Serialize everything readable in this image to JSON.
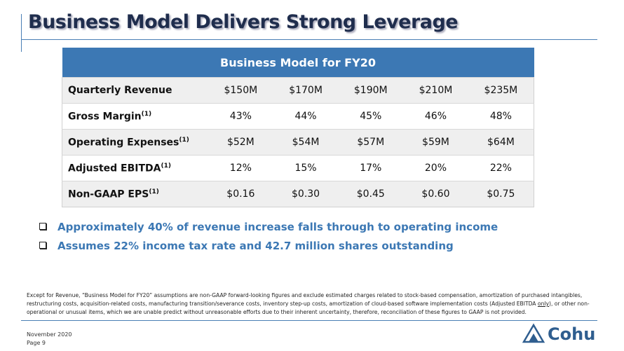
{
  "header": {
    "title": "Business Model Delivers Strong Leverage"
  },
  "table": {
    "title": "Business Model for FY20",
    "rows": [
      {
        "label": "Quarterly Revenue",
        "note": null,
        "values": [
          "$150M",
          "$170M",
          "$190M",
          "$210M",
          "$235M"
        ]
      },
      {
        "label": "Gross Margin",
        "note": "(1)",
        "values": [
          "43%",
          "44%",
          "45%",
          "46%",
          "48%"
        ]
      },
      {
        "label": "Operating Expenses",
        "note": "(1)",
        "values": [
          "$52M",
          "$54M",
          "$57M",
          "$59M",
          "$64M"
        ]
      },
      {
        "label": "Adjusted EBITDA",
        "note": "(1)",
        "values": [
          "12%",
          "15%",
          "17%",
          "20%",
          "22%"
        ]
      },
      {
        "label": "Non-GAAP EPS",
        "note": "(1)",
        "values": [
          "$0.16",
          "$0.30",
          "$0.45",
          "$0.60",
          "$0.75"
        ]
      }
    ]
  },
  "bullets": [
    "Approximately 40% of revenue increase falls through to operating income",
    "Assumes 22% income tax rate and 42.7 million shares outstanding"
  ],
  "footnote": {
    "before": "Except for Revenue, “Business Model for FY20” assumptions are non-GAAP forward-looking figures and exclude estimated charges related to stock-based compensation, amortization of purchased intangibles, restructuring costs, acquisition-related costs, manufacturing transition/severance costs, inventory step-up costs, amortization of cloud-based software implementation costs (Adjusted EBITDA ",
    "emphasis": "only",
    "after": "), or other non-operational or unusual items, which we are unable predict without unreasonable efforts due to their inherent uncertainty, therefore, reconciliation of these figures to GAAP is not provided."
  },
  "footer": {
    "date": "November  2020",
    "page": "Page 9",
    "logo": "Cohu"
  }
}
